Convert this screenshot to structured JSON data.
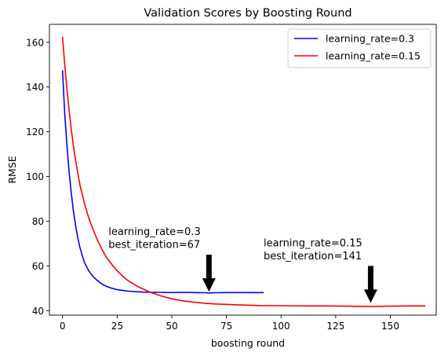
{
  "chart_data": {
    "type": "line",
    "title": "Validation Scores by Boosting Round",
    "xlabel": "boosting round",
    "ylabel": "RMSE",
    "xlim": [
      -6,
      171
    ],
    "ylim": [
      38,
      168
    ],
    "xticks": [
      0,
      25,
      50,
      75,
      100,
      125,
      150
    ],
    "yticks": [
      40,
      60,
      80,
      100,
      120,
      140,
      160
    ],
    "legend_position": "top-right",
    "series": [
      {
        "name": "learning_rate=0.3",
        "color": "#0000ff",
        "x": [
          0,
          1,
          2,
          3,
          4,
          5,
          6,
          7,
          8,
          10,
          12,
          14,
          16,
          18,
          20,
          22,
          25,
          28,
          30,
          35,
          40,
          45,
          50,
          55,
          60,
          65,
          67,
          70,
          75,
          80,
          85,
          92
        ],
        "y": [
          147.5,
          128,
          114,
          102,
          92.5,
          84.5,
          78,
          72.5,
          68,
          61.5,
          57.8,
          55.2,
          53.4,
          52,
          50.9,
          50.2,
          49.4,
          49,
          48.7,
          48.4,
          48.2,
          48.2,
          48.1,
          48.2,
          48.1,
          48.0,
          47.9,
          48.0,
          48.1,
          48.1,
          48.1,
          48.1
        ]
      },
      {
        "name": "learning_rate=0.15",
        "color": "#ff0000",
        "x": [
          0,
          1,
          2,
          3,
          4,
          5,
          6,
          8,
          10,
          12,
          14,
          16,
          18,
          20,
          22,
          25,
          28,
          30,
          35,
          40,
          45,
          50,
          55,
          60,
          65,
          70,
          75,
          80,
          90,
          100,
          110,
          120,
          130,
          141,
          150,
          160,
          166
        ],
        "y": [
          162.5,
          150,
          139,
          129.5,
          121,
          113.5,
          107,
          96,
          88,
          81.5,
          76.2,
          71.5,
          67.5,
          64,
          61.3,
          57.8,
          55,
          53.4,
          50.5,
          48.3,
          46.6,
          45.3,
          44.4,
          43.8,
          43.3,
          43,
          42.8,
          42.6,
          42.3,
          42.2,
          42.1,
          42.1,
          42.0,
          41.9,
          42.0,
          42.1,
          42.1
        ]
      }
    ],
    "annotations": [
      {
        "lines": [
          "learning_rate=0.3",
          "best_iteration=67"
        ],
        "text_x": 21,
        "text_y": 68,
        "arrow_x": 67,
        "arrow_from_y": 65,
        "arrow_to_y": 48.5
      },
      {
        "lines": [
          "learning_rate=0.15",
          "best_iteration=141"
        ],
        "text_x": 92,
        "text_y": 63,
        "arrow_x": 141,
        "arrow_from_y": 60,
        "arrow_to_y": 43.5
      }
    ]
  }
}
